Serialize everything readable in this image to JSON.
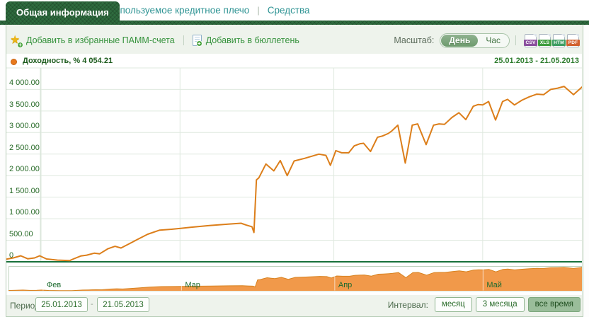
{
  "tabs": {
    "active": "Общая информация",
    "leverage": "Используемое кредитное плечо",
    "funds": "Средства",
    "separator": "|"
  },
  "icons": {
    "star": "★",
    "plus": "+"
  },
  "toolbar": {
    "add_favorites": "Добавить в избранные ПАММ-счета",
    "separator": "|",
    "add_bulletin": "Добавить в бюллетень",
    "scale_label": "Масштаб:",
    "scale_day": "День",
    "scale_hour": "Час",
    "export": [
      {
        "label": "CSV",
        "color": "#8b4f9e"
      },
      {
        "label": "XLS",
        "color": "#3f9e3f"
      },
      {
        "label": "HTM",
        "color": "#3f9e63"
      },
      {
        "label": "PDF",
        "color": "#d2622f"
      }
    ]
  },
  "legend": {
    "series": "Доходность, % 4 054.21",
    "date_range": "25.01.2013 - 21.05.2013"
  },
  "period": {
    "label": "Период:",
    "from": "25.01.2013",
    "dash": "-",
    "to": "21.05.2013"
  },
  "interval": {
    "label": "Интервал:",
    "options": [
      "месяц",
      "3 месяца",
      "все время"
    ],
    "active": "все время"
  },
  "colors": {
    "line": "#dc7e1a",
    "area": "#f1994a",
    "area_edge": "#d8821f",
    "baseline": "#17703a",
    "grid": "#dfe9df",
    "axis": "#d5e3d5",
    "mini_border": "#bfd2bf",
    "mini_monthline": "rgba(255,255,255,0.65)"
  },
  "chart_data": {
    "type": "line",
    "title": "Доходность, % 4 054.21",
    "series_name": "Доходность, %",
    "current_value": 4054.21,
    "date_range": "25.01.2013 - 21.05.2013",
    "x_unit": "days since 25.01.2013",
    "x_range": [
      0,
      116
    ],
    "ylim": [
      0,
      4250
    ],
    "grid": true,
    "y_ticks": [
      {
        "value": 4000,
        "label": "4 000.00"
      },
      {
        "value": 3500,
        "label": "3 500.00"
      },
      {
        "value": 3000,
        "label": "3 000.00"
      },
      {
        "value": 2500,
        "label": "2 500.00"
      },
      {
        "value": 2000,
        "label": "2 000.00"
      },
      {
        "value": 1500,
        "label": "1 500.00"
      },
      {
        "value": 1000,
        "label": "1 000.00"
      },
      {
        "value": 500,
        "label": "500.00"
      },
      {
        "value": 0,
        "label": "0"
      }
    ],
    "months": [
      {
        "day": 7,
        "label": "Фев"
      },
      {
        "day": 35,
        "label": "Мар"
      },
      {
        "day": 66,
        "label": "Апр"
      },
      {
        "day": 96,
        "label": "Май"
      }
    ],
    "points": [
      [
        0,
        60
      ],
      [
        1.4,
        90
      ],
      [
        2.9,
        140
      ],
      [
        4.3,
        70
      ],
      [
        5.7,
        90
      ],
      [
        6.7,
        140
      ],
      [
        8.1,
        65
      ],
      [
        10.3,
        40
      ],
      [
        12.8,
        30
      ],
      [
        13.5,
        65
      ],
      [
        15.0,
        135
      ],
      [
        16.2,
        155
      ],
      [
        17.7,
        200
      ],
      [
        18.8,
        185
      ],
      [
        20.5,
        305
      ],
      [
        21.9,
        360
      ],
      [
        23.1,
        320
      ],
      [
        24.8,
        420
      ],
      [
        26.6,
        530
      ],
      [
        28.5,
        640
      ],
      [
        30.9,
        735
      ],
      [
        33.3,
        755
      ],
      [
        37.1,
        800
      ],
      [
        40.9,
        840
      ],
      [
        44.7,
        875
      ],
      [
        47.3,
        895
      ],
      [
        48.4,
        850
      ],
      [
        49.5,
        815
      ],
      [
        49.9,
        680
      ],
      [
        50.4,
        1900
      ],
      [
        50.9,
        1950
      ],
      [
        52.3,
        2270
      ],
      [
        53.9,
        2110
      ],
      [
        55.2,
        2350
      ],
      [
        56.6,
        2000
      ],
      [
        58.0,
        2340
      ],
      [
        60.1,
        2400
      ],
      [
        63.0,
        2500
      ],
      [
        64.4,
        2470
      ],
      [
        65.3,
        2240
      ],
      [
        66.4,
        2580
      ],
      [
        67.6,
        2530
      ],
      [
        69.0,
        2530
      ],
      [
        70.1,
        2690
      ],
      [
        71.3,
        2740
      ],
      [
        72.0,
        2750
      ],
      [
        73.4,
        2560
      ],
      [
        74.8,
        2890
      ],
      [
        75.8,
        2920
      ],
      [
        77.0,
        2980
      ],
      [
        77.7,
        3040
      ],
      [
        78.9,
        3170
      ],
      [
        80.4,
        2290
      ],
      [
        81.8,
        3170
      ],
      [
        82.9,
        3200
      ],
      [
        84.6,
        2720
      ],
      [
        86.1,
        3170
      ],
      [
        87.2,
        3200
      ],
      [
        88.3,
        3190
      ],
      [
        89.8,
        3350
      ],
      [
        91.2,
        3460
      ],
      [
        92.6,
        3300
      ],
      [
        94.1,
        3610
      ],
      [
        95.1,
        3650
      ],
      [
        96.0,
        3640
      ],
      [
        97.2,
        3720
      ],
      [
        98.6,
        3290
      ],
      [
        100.0,
        3720
      ],
      [
        101.0,
        3770
      ],
      [
        102.4,
        3640
      ],
      [
        103.9,
        3750
      ],
      [
        105.4,
        3830
      ],
      [
        106.9,
        3890
      ],
      [
        108.3,
        3880
      ],
      [
        109.7,
        4000
      ],
      [
        111.1,
        4030
      ],
      [
        112.4,
        4070
      ],
      [
        114.3,
        3880
      ],
      [
        116,
        4054.21
      ]
    ]
  }
}
